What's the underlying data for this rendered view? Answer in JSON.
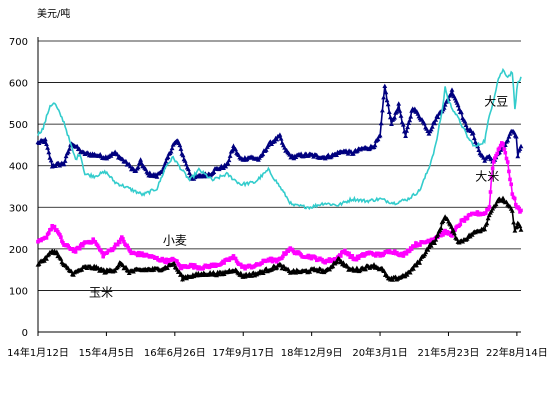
{
  "chart_data": {
    "type": "line",
    "title": "",
    "xlabel": "",
    "ylabel": "",
    "unit_label": "美元/吨",
    "ylim": [
      0,
      700
    ],
    "yticks": [
      0,
      100,
      200,
      300,
      400,
      500,
      600,
      700
    ],
    "ytick_labels": [
      "0",
      "100",
      "200",
      "300",
      "400",
      "500",
      "600",
      "700"
    ],
    "xlim": [
      "2014-01-12",
      "2022-09-10"
    ],
    "xticks": [
      "2014-01-12",
      "2015-04-05",
      "2016-06-26",
      "2017-09-17",
      "2018-12-09",
      "2020-03-01",
      "2021-05-23",
      "2022-08-14"
    ],
    "xtick_labels": [
      "14年1月12日",
      "15年4月5日",
      "16年6月26日",
      "17年9月17日",
      "18年12月9日",
      "20年3月1日",
      "21年5月23日",
      "22年8月14日"
    ],
    "grid": "horizontal",
    "legend": "none",
    "series": [
      {
        "name": "大豆",
        "color": "#00007F",
        "marker": "triangle",
        "points": [
          [
            "2014-01-12",
            455
          ],
          [
            "2014-03-01",
            460
          ],
          [
            "2014-04-15",
            400
          ],
          [
            "2014-07-01",
            405
          ],
          [
            "2014-08-20",
            455
          ],
          [
            "2014-11-01",
            430
          ],
          [
            "2015-02-01",
            425
          ],
          [
            "2015-04-01",
            420
          ],
          [
            "2015-06-01",
            430
          ],
          [
            "2015-09-01",
            400
          ],
          [
            "2015-10-15",
            385
          ],
          [
            "2015-11-15",
            410
          ],
          [
            "2016-01-01",
            380
          ],
          [
            "2016-03-01",
            375
          ],
          [
            "2016-04-15",
            395
          ],
          [
            "2016-06-15",
            450
          ],
          [
            "2016-07-15",
            460
          ],
          [
            "2016-09-01",
            410
          ],
          [
            "2016-10-15",
            370
          ],
          [
            "2016-12-15",
            375
          ],
          [
            "2017-02-15",
            380
          ],
          [
            "2017-03-15",
            390
          ],
          [
            "2017-06-01",
            400
          ],
          [
            "2017-07-15",
            445
          ],
          [
            "2017-09-01",
            415
          ],
          [
            "2017-11-01",
            420
          ],
          [
            "2018-01-01",
            415
          ],
          [
            "2018-03-01",
            450
          ],
          [
            "2018-05-15",
            470
          ],
          [
            "2018-06-15",
            440
          ],
          [
            "2018-08-01",
            420
          ],
          [
            "2018-10-01",
            425
          ],
          [
            "2018-12-01",
            425
          ],
          [
            "2019-03-01",
            420
          ],
          [
            "2019-05-01",
            425
          ],
          [
            "2019-07-01",
            435
          ],
          [
            "2019-09-01",
            430
          ],
          [
            "2019-11-01",
            440
          ],
          [
            "2020-01-15",
            445
          ],
          [
            "2020-03-01",
            470
          ],
          [
            "2020-04-01",
            590
          ],
          [
            "2020-05-15",
            500
          ],
          [
            "2020-07-01",
            545
          ],
          [
            "2020-08-15",
            470
          ],
          [
            "2020-10-01",
            540
          ],
          [
            "2020-12-01",
            510
          ],
          [
            "2021-01-15",
            480
          ],
          [
            "2021-03-15",
            520
          ],
          [
            "2021-05-01",
            545
          ],
          [
            "2021-06-15",
            580
          ],
          [
            "2021-08-01",
            540
          ],
          [
            "2021-09-15",
            495
          ],
          [
            "2021-11-01",
            475
          ],
          [
            "2021-12-15",
            430
          ],
          [
            "2022-01-15",
            415
          ],
          [
            "2022-02-15",
            420
          ],
          [
            "2022-03-15",
            410
          ],
          [
            "2022-04-15",
            430
          ],
          [
            "2022-05-15",
            440
          ],
          [
            "2022-06-15",
            460
          ],
          [
            "2022-07-15",
            485
          ],
          [
            "2022-08-10",
            470
          ],
          [
            "2022-08-20",
            425
          ],
          [
            "2022-09-10",
            450
          ]
        ]
      },
      {
        "name": "大米",
        "color": "#33CCCC",
        "marker": "none",
        "points": [
          [
            "2014-01-12",
            475
          ],
          [
            "2014-02-15",
            490
          ],
          [
            "2014-04-01",
            545
          ],
          [
            "2014-05-01",
            550
          ],
          [
            "2014-07-01",
            505
          ],
          [
            "2014-08-15",
            450
          ],
          [
            "2014-09-15",
            415
          ],
          [
            "2014-10-15",
            430
          ],
          [
            "2014-11-15",
            380
          ],
          [
            "2015-01-15",
            375
          ],
          [
            "2015-04-01",
            385
          ],
          [
            "2015-06-01",
            360
          ],
          [
            "2015-09-01",
            345
          ],
          [
            "2015-12-01",
            330
          ],
          [
            "2016-03-01",
            345
          ],
          [
            "2016-05-01",
            400
          ],
          [
            "2016-06-15",
            420
          ],
          [
            "2016-08-01",
            395
          ],
          [
            "2016-10-01",
            365
          ],
          [
            "2016-12-01",
            390
          ],
          [
            "2017-03-01",
            365
          ],
          [
            "2017-06-01",
            380
          ],
          [
            "2017-09-01",
            355
          ],
          [
            "2017-12-01",
            360
          ],
          [
            "2018-03-01",
            390
          ],
          [
            "2018-06-01",
            340
          ],
          [
            "2018-08-01",
            305
          ],
          [
            "2018-12-01",
            300
          ],
          [
            "2019-03-01",
            310
          ],
          [
            "2019-06-01",
            305
          ],
          [
            "2019-09-01",
            320
          ],
          [
            "2019-12-01",
            315
          ],
          [
            "2020-03-01",
            320
          ],
          [
            "2020-06-01",
            310
          ],
          [
            "2020-09-01",
            320
          ],
          [
            "2020-11-15",
            340
          ],
          [
            "2021-01-15",
            395
          ],
          [
            "2021-03-01",
            450
          ],
          [
            "2021-04-15",
            540
          ],
          [
            "2021-05-01",
            590
          ],
          [
            "2021-05-23",
            555
          ],
          [
            "2021-07-01",
            530
          ],
          [
            "2021-08-15",
            500
          ],
          [
            "2021-10-01",
            465
          ],
          [
            "2021-11-15",
            445
          ],
          [
            "2022-01-15",
            460
          ],
          [
            "2022-02-15",
            520
          ],
          [
            "2022-03-15",
            560
          ],
          [
            "2022-04-15",
            610
          ],
          [
            "2022-05-15",
            630
          ],
          [
            "2022-06-15",
            615
          ],
          [
            "2022-07-15",
            625
          ],
          [
            "2022-08-01",
            540
          ],
          [
            "2022-08-20",
            600
          ],
          [
            "2022-09-10",
            610
          ]
        ]
      },
      {
        "name": "小麦",
        "color": "#FF00FF",
        "marker": "square",
        "points": [
          [
            "2014-01-12",
            215
          ],
          [
            "2014-03-01",
            225
          ],
          [
            "2014-04-15",
            255
          ],
          [
            "2014-05-15",
            245
          ],
          [
            "2014-07-01",
            210
          ],
          [
            "2014-09-15",
            195
          ],
          [
            "2014-11-15",
            215
          ],
          [
            "2015-01-15",
            220
          ],
          [
            "2015-03-15",
            185
          ],
          [
            "2015-05-15",
            200
          ],
          [
            "2015-07-15",
            225
          ],
          [
            "2015-09-15",
            190
          ],
          [
            "2015-12-15",
            185
          ],
          [
            "2016-03-15",
            175
          ],
          [
            "2016-05-15",
            170
          ],
          [
            "2016-06-26",
            175
          ],
          [
            "2016-08-01",
            155
          ],
          [
            "2016-10-01",
            160
          ],
          [
            "2016-12-15",
            155
          ],
          [
            "2017-03-01",
            160
          ],
          [
            "2017-05-01",
            165
          ],
          [
            "2017-07-15",
            180
          ],
          [
            "2017-09-15",
            155
          ],
          [
            "2017-12-15",
            160
          ],
          [
            "2018-03-01",
            175
          ],
          [
            "2018-05-01",
            170
          ],
          [
            "2018-07-15",
            200
          ],
          [
            "2018-10-01",
            185
          ],
          [
            "2018-12-15",
            180
          ],
          [
            "2019-03-01",
            170
          ],
          [
            "2019-05-15",
            175
          ],
          [
            "2019-07-15",
            195
          ],
          [
            "2019-09-15",
            175
          ],
          [
            "2019-12-15",
            190
          ],
          [
            "2020-03-01",
            185
          ],
          [
            "2020-05-15",
            195
          ],
          [
            "2020-08-01",
            185
          ],
          [
            "2020-10-15",
            210
          ],
          [
            "2020-12-15",
            215
          ],
          [
            "2021-02-15",
            225
          ],
          [
            "2021-05-01",
            240
          ],
          [
            "2021-06-15",
            235
          ],
          [
            "2021-08-15",
            265
          ],
          [
            "2021-10-15",
            280
          ],
          [
            "2021-11-15",
            285
          ],
          [
            "2022-01-15",
            285
          ],
          [
            "2022-02-15",
            300
          ],
          [
            "2022-03-01",
            375
          ],
          [
            "2022-03-15",
            410
          ],
          [
            "2022-04-15",
            440
          ],
          [
            "2022-05-15",
            455
          ],
          [
            "2022-06-15",
            405
          ],
          [
            "2022-07-15",
            335
          ],
          [
            "2022-08-15",
            300
          ],
          [
            "2022-09-10",
            290
          ]
        ]
      },
      {
        "name": "玉米",
        "color": "#000000",
        "marker": "triangle",
        "points": [
          [
            "2014-01-12",
            165
          ],
          [
            "2014-03-01",
            175
          ],
          [
            "2014-04-15",
            195
          ],
          [
            "2014-05-15",
            190
          ],
          [
            "2014-07-01",
            160
          ],
          [
            "2014-09-01",
            140
          ],
          [
            "2014-11-15",
            155
          ],
          [
            "2015-01-15",
            155
          ],
          [
            "2015-04-01",
            145
          ],
          [
            "2015-06-01",
            150
          ],
          [
            "2015-07-01",
            165
          ],
          [
            "2015-09-01",
            145
          ],
          [
            "2015-12-15",
            150
          ],
          [
            "2016-03-01",
            150
          ],
          [
            "2016-05-01",
            155
          ],
          [
            "2016-06-15",
            165
          ],
          [
            "2016-08-15",
            130
          ],
          [
            "2016-10-15",
            135
          ],
          [
            "2017-01-15",
            140
          ],
          [
            "2017-05-01",
            140
          ],
          [
            "2017-07-15",
            150
          ],
          [
            "2017-09-15",
            135
          ],
          [
            "2017-12-15",
            140
          ],
          [
            "2018-03-01",
            150
          ],
          [
            "2018-05-15",
            160
          ],
          [
            "2018-07-15",
            145
          ],
          [
            "2018-10-15",
            145
          ],
          [
            "2019-01-15",
            150
          ],
          [
            "2019-03-15",
            145
          ],
          [
            "2019-06-01",
            175
          ],
          [
            "2019-08-15",
            150
          ],
          [
            "2019-10-15",
            150
          ],
          [
            "2020-01-15",
            160
          ],
          [
            "2020-03-15",
            150
          ],
          [
            "2020-05-01",
            125
          ],
          [
            "2020-07-01",
            130
          ],
          [
            "2020-09-01",
            140
          ],
          [
            "2020-11-15",
            170
          ],
          [
            "2021-01-15",
            205
          ],
          [
            "2021-03-01",
            220
          ],
          [
            "2021-05-01",
            280
          ],
          [
            "2021-05-23",
            265
          ],
          [
            "2021-07-01",
            235
          ],
          [
            "2021-08-01",
            215
          ],
          [
            "2021-09-15",
            225
          ],
          [
            "2021-11-15",
            240
          ],
          [
            "2022-01-15",
            250
          ],
          [
            "2022-03-01",
            295
          ],
          [
            "2022-04-15",
            315
          ],
          [
            "2022-05-15",
            320
          ],
          [
            "2022-06-15",
            305
          ],
          [
            "2022-07-15",
            290
          ],
          [
            "2022-08-01",
            240
          ],
          [
            "2022-08-20",
            265
          ],
          [
            "2022-09-10",
            245
          ]
        ]
      }
    ],
    "annotations": [
      {
        "text": "大豆",
        "series": "大豆",
        "at": [
          "2022-04-01",
          545
        ]
      },
      {
        "text": "大米",
        "series": "大米",
        "at": [
          "2022-02-01",
          365
        ]
      },
      {
        "text": "小麦",
        "series": "小麦",
        "at": [
          "2016-06-26",
          210
        ]
      },
      {
        "text": "玉米",
        "series": "玉米",
        "at": [
          "2015-03-01",
          85
        ]
      }
    ]
  }
}
